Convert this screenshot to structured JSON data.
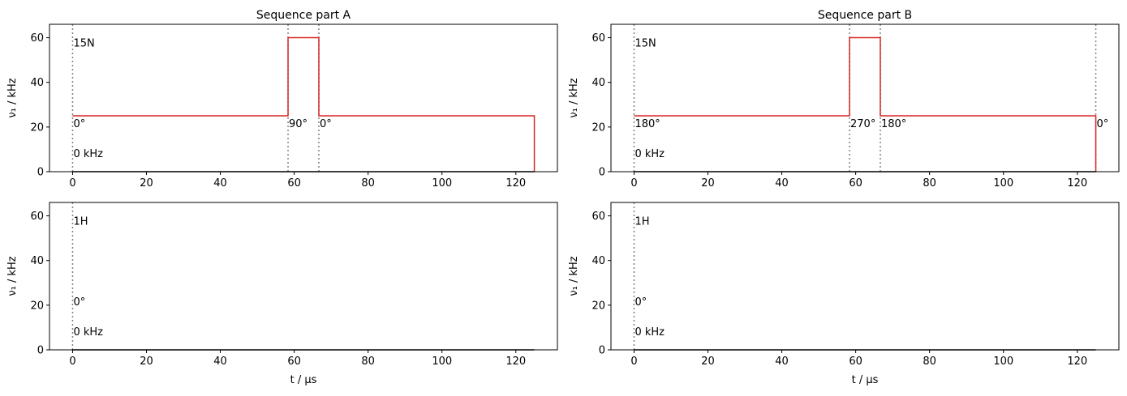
{
  "chart_data": [
    {
      "type": "line",
      "title": "Sequence part A",
      "ylabel": "ν₁ / kHz",
      "xlim": [
        -6.25,
        131.25
      ],
      "ylim": [
        0,
        66
      ],
      "xticks": [
        0,
        20,
        40,
        60,
        80,
        100,
        120
      ],
      "yticks": [
        0,
        20,
        40,
        60
      ],
      "series": [
        {
          "color": "#d62728",
          "x": [
            0,
            58.33,
            58.33,
            66.67,
            66.67,
            125,
            125
          ],
          "values": [
            25,
            25,
            60,
            60,
            25,
            25,
            0
          ]
        },
        {
          "color": "#000000",
          "x": [
            0,
            125
          ],
          "values": [
            0,
            0
          ]
        }
      ],
      "vlines": [
        0,
        58.33,
        66.67
      ],
      "annotations": [
        {
          "text": "15N",
          "x": 0,
          "y": 56
        },
        {
          "text": "0°",
          "x": 0,
          "y": 20
        },
        {
          "text": "90°",
          "x": 58.33,
          "y": 20
        },
        {
          "text": "0°",
          "x": 66.67,
          "y": 20
        },
        {
          "text": "0 kHz",
          "x": 0,
          "y": 6.5
        }
      ]
    },
    {
      "type": "line",
      "title": "Sequence part B",
      "ylabel": "ν₁ / kHz",
      "xlim": [
        -6.25,
        131.25
      ],
      "ylim": [
        0,
        66
      ],
      "xticks": [
        0,
        20,
        40,
        60,
        80,
        100,
        120
      ],
      "yticks": [
        0,
        20,
        40,
        60
      ],
      "series": [
        {
          "color": "#d62728",
          "x": [
            0,
            58.33,
            58.33,
            66.67,
            66.67,
            125,
            125
          ],
          "values": [
            25,
            25,
            60,
            60,
            25,
            25,
            0
          ]
        },
        {
          "color": "#000000",
          "x": [
            0,
            125
          ],
          "values": [
            0,
            0
          ]
        }
      ],
      "vlines": [
        0,
        58.33,
        66.67,
        125
      ],
      "annotations": [
        {
          "text": "15N",
          "x": 0,
          "y": 56
        },
        {
          "text": "180°",
          "x": 0,
          "y": 20
        },
        {
          "text": "270°",
          "x": 58.33,
          "y": 20
        },
        {
          "text": "180°",
          "x": 66.67,
          "y": 20
        },
        {
          "text": "0°",
          "x": 125,
          "y": 20
        },
        {
          "text": "0 kHz",
          "x": 0,
          "y": 6.5
        }
      ]
    },
    {
      "type": "line",
      "ylabel": "ν₁ / kHz",
      "xlabel": "t / μs",
      "xlim": [
        -6.25,
        131.25
      ],
      "ylim": [
        0,
        66
      ],
      "xticks": [
        0,
        20,
        40,
        60,
        80,
        100,
        120
      ],
      "yticks": [
        0,
        20,
        40,
        60
      ],
      "series": [
        {
          "color": "#000000",
          "x": [
            0,
            125
          ],
          "values": [
            0,
            0
          ]
        }
      ],
      "vlines": [
        0
      ],
      "annotations": [
        {
          "text": "1H",
          "x": 0,
          "y": 56
        },
        {
          "text": "0°",
          "x": 0,
          "y": 20
        },
        {
          "text": "0 kHz",
          "x": 0,
          "y": 6.5
        }
      ]
    },
    {
      "type": "line",
      "ylabel": "ν₁ / kHz",
      "xlabel": "t / μs",
      "xlim": [
        -6.25,
        131.25
      ],
      "ylim": [
        0,
        66
      ],
      "xticks": [
        0,
        20,
        40,
        60,
        80,
        100,
        120
      ],
      "yticks": [
        0,
        20,
        40,
        60
      ],
      "series": [
        {
          "color": "#000000",
          "x": [
            0,
            125
          ],
          "values": [
            0,
            0
          ]
        }
      ],
      "vlines": [
        0
      ],
      "annotations": [
        {
          "text": "1H",
          "x": 0,
          "y": 56
        },
        {
          "text": "0°",
          "x": 0,
          "y": 20
        },
        {
          "text": "0 kHz",
          "x": 0,
          "y": 6.5
        }
      ]
    }
  ]
}
